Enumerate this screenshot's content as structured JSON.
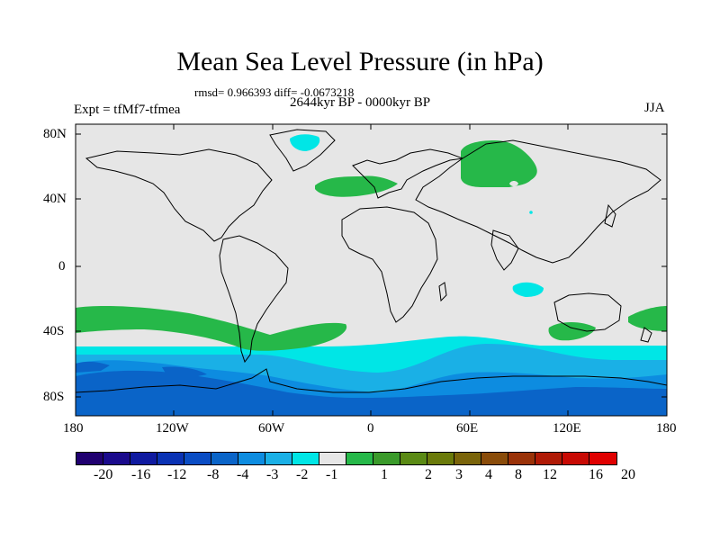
{
  "title": "Mean Sea Level Pressure (in hPa)",
  "stats": "rmsd= 0.966393 diff= -0.0673218",
  "period": "2644kyr BP - 0000kyr BP",
  "experiment": "Expt = tfMf7-tfmea",
  "season": "JJA",
  "y_axis": {
    "labels": [
      "80N",
      "40N",
      "0",
      "40S",
      "80S"
    ]
  },
  "x_axis": {
    "labels": [
      "180",
      "120W",
      "60W",
      "0",
      "60E",
      "120E",
      "180"
    ]
  },
  "colors": {
    "ocean_neutral": "#e6e6e6",
    "green": "#26b849",
    "cyan": "#00e6e6",
    "light_blue": "#1ab0e6",
    "mid_blue": "#0d8ce0",
    "deep_blue": "#0a64c8"
  },
  "colorbar": {
    "colors": [
      "#200070",
      "#1a0a8c",
      "#0f1aa0",
      "#0a32b4",
      "#0a4cc4",
      "#0a64c8",
      "#0d8ce0",
      "#1ab0e6",
      "#00e6e6",
      "#e6e6e6",
      "#26b849",
      "#3a9a2a",
      "#5a8a14",
      "#6a7a0a",
      "#7a640a",
      "#8a4c0a",
      "#9a3208",
      "#b01a06",
      "#c80a04",
      "#e00000"
    ],
    "labels": [
      "-20",
      "-16",
      "-12",
      "-8",
      "-4",
      "-3",
      "-2",
      "-1",
      "1",
      "2",
      "3",
      "4",
      "8",
      "12",
      "16",
      "20"
    ]
  }
}
